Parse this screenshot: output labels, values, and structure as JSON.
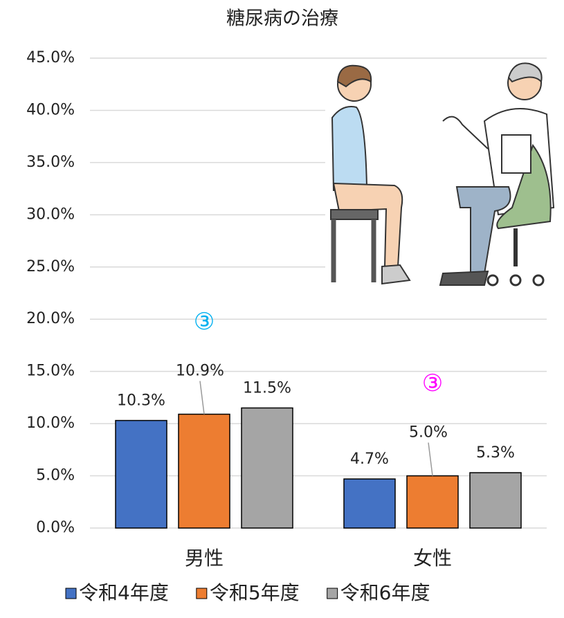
{
  "chart_data": {
    "type": "bar",
    "title": "糖尿病の治療",
    "categories": [
      "男性",
      "女性"
    ],
    "series": [
      {
        "name": "令和4年度",
        "color": "#4472c4",
        "values": [
          10.3,
          4.7
        ],
        "value_labels": [
          "10.3%",
          "4.7%"
        ]
      },
      {
        "name": "令和5年度",
        "color": "#ed7d31",
        "values": [
          10.9,
          5.0
        ],
        "value_labels": [
          "10.9%",
          "5.0%"
        ]
      },
      {
        "name": "令和6年度",
        "color": "#a5a5a5",
        "values": [
          11.5,
          5.3
        ],
        "value_labels": [
          "11.5%",
          "5.3%"
        ]
      }
    ],
    "ylim": [
      0,
      45
    ],
    "yticks": [
      {
        "value": 0,
        "label": "0.0%"
      },
      {
        "value": 5,
        "label": "5.0%"
      },
      {
        "value": 10,
        "label": "10.0%"
      },
      {
        "value": 15,
        "label": "15.0%"
      },
      {
        "value": 20,
        "label": "20.0%"
      },
      {
        "value": 25,
        "label": "25.0%"
      },
      {
        "value": 30,
        "label": "30.0%"
      },
      {
        "value": 35,
        "label": "35.0%"
      },
      {
        "value": 40,
        "label": "40.0%"
      },
      {
        "value": 45,
        "label": "45.0%"
      }
    ],
    "grid": true,
    "legend": "bottom",
    "annotations": [
      {
        "text": "③",
        "color": "#00b0f0"
      },
      {
        "text": "③",
        "color": "#ff00ff"
      }
    ]
  }
}
